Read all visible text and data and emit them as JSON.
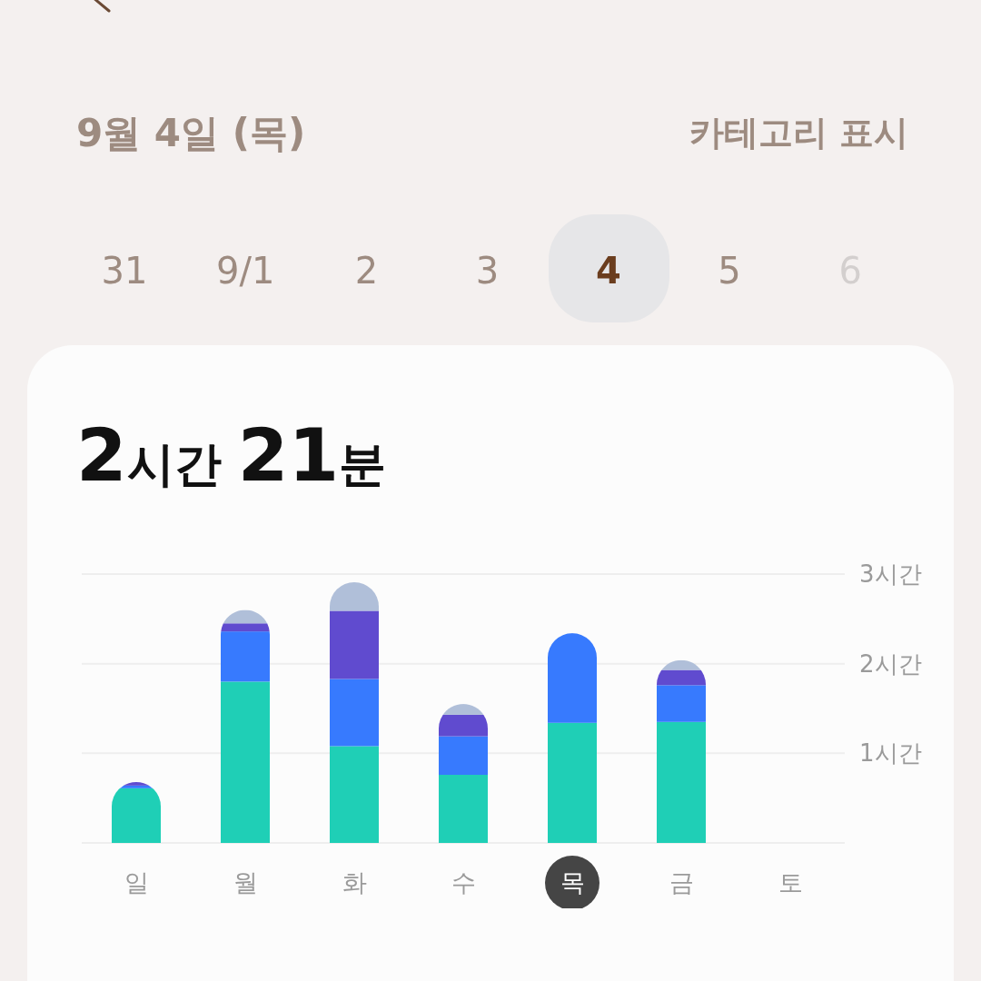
{
  "chart_data": {
    "type": "bar",
    "title": "2시간 21분",
    "categories": [
      "일",
      "월",
      "화",
      "수",
      "목",
      "금",
      "토"
    ],
    "series": [
      {
        "color": "#1fcfb6",
        "values": [
          0.61,
          1.8,
          1.08,
          0.76,
          1.34,
          1.35,
          null
        ]
      },
      {
        "color": "#377afe",
        "values": [
          0.03,
          0.56,
          0.75,
          0.43,
          1.0,
          0.41,
          null
        ]
      },
      {
        "color": "#604bcf",
        "values": [
          0.04,
          0.09,
          0.76,
          0.24,
          null,
          0.17,
          null
        ]
      },
      {
        "color": "#b0bfd9",
        "values": [
          null,
          0.15,
          0.32,
          0.12,
          null,
          0.11,
          null
        ]
      }
    ],
    "stacked": true,
    "ylim": [
      0,
      3
    ],
    "yticks": [
      {
        "value": 0,
        "label": null
      },
      {
        "value": 1,
        "label": "1시간"
      },
      {
        "value": 2,
        "label": "2시간"
      },
      {
        "value": 3,
        "label": "3시간"
      }
    ],
    "grid": "y",
    "annotations": [
      "9월 4일 (목)",
      "카테고리 표시",
      "31",
      "9/1",
      "2",
      "3",
      "4",
      "5",
      "6"
    ]
  }
}
